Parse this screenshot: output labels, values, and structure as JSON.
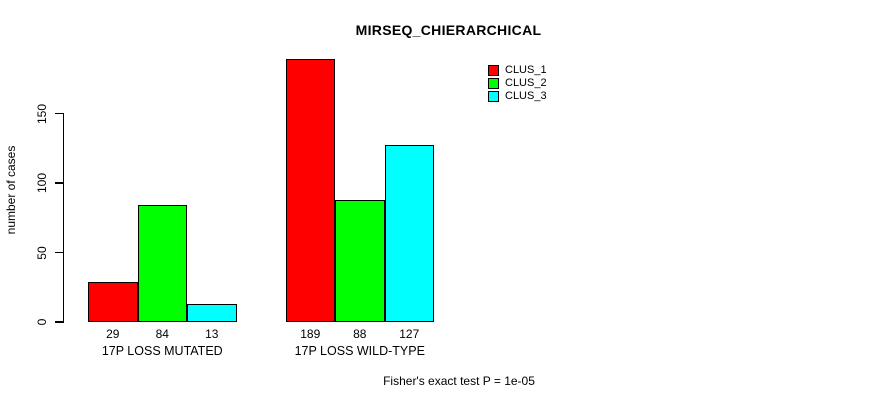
{
  "chart_data": {
    "type": "bar",
    "title": "MIRSEQ_CHIERARCHICAL",
    "ylabel": "number of cases",
    "xlabel": "",
    "categories": [
      "17P LOSS MUTATED",
      "17P LOSS WILD-TYPE"
    ],
    "series": [
      {
        "name": "CLUS_1",
        "color": "#ff0000",
        "values": [
          29,
          189
        ]
      },
      {
        "name": "CLUS_2",
        "color": "#00ff00",
        "values": [
          84,
          88
        ]
      },
      {
        "name": "CLUS_3",
        "color": "#00ffff",
        "values": [
          13,
          127
        ]
      }
    ],
    "bar_value_labels": [
      [
        29,
        84,
        13
      ],
      [
        189,
        88,
        127
      ]
    ],
    "yticks": [
      0,
      50,
      100,
      150
    ],
    "ylim": [
      0,
      193
    ],
    "grid": false,
    "legend_position": "top-right",
    "annotation": "Fisher's exact test P = 1e-05",
    "bar_border_color": "#000000",
    "axis_color": "#000000",
    "background_color": "#ffffff"
  }
}
